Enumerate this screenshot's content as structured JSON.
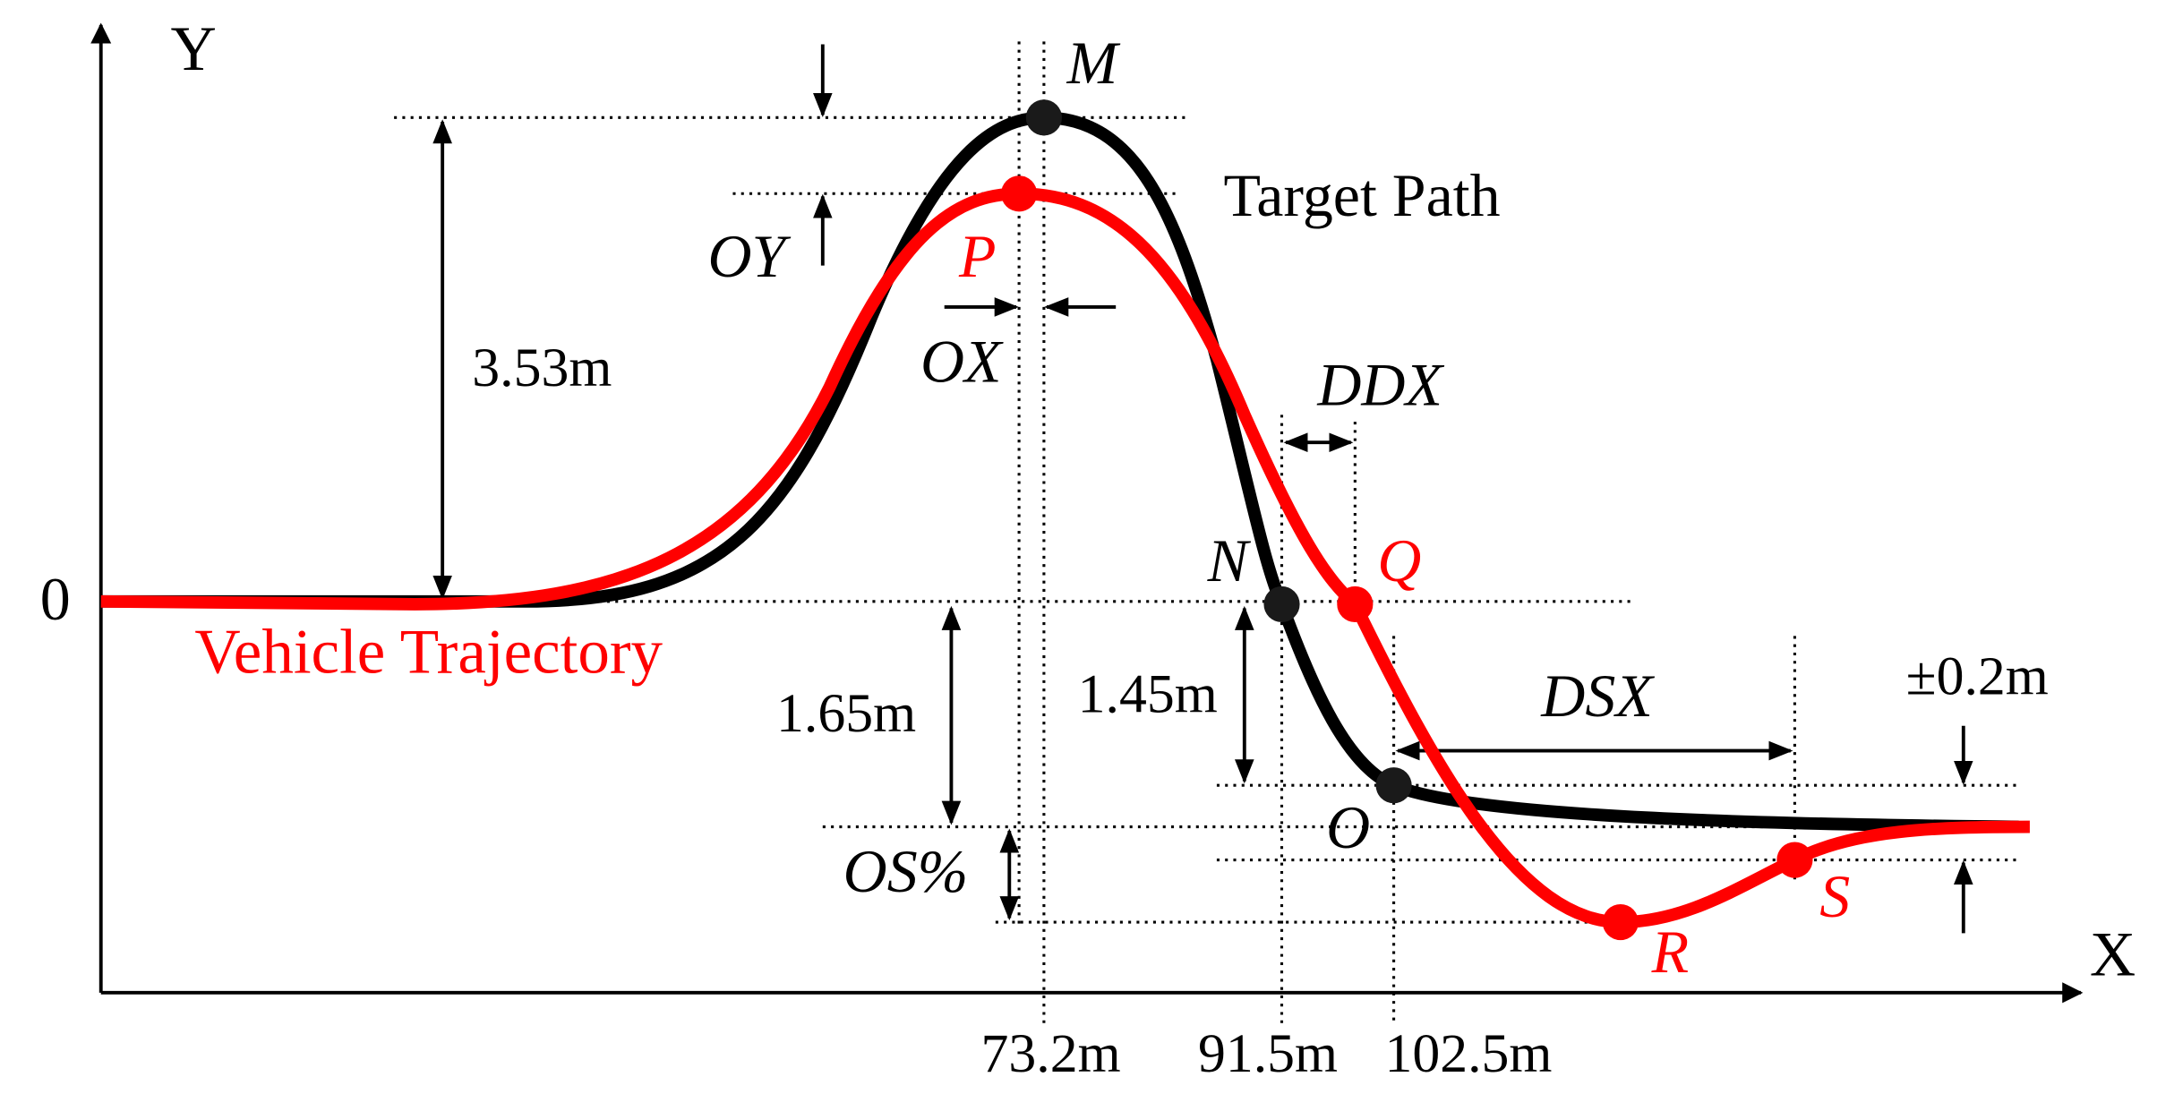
{
  "axes": {
    "y_label": "Y",
    "x_label": "X",
    "origin": "0"
  },
  "labels": {
    "top_peak": "M",
    "target_path": "Target Path",
    "vehicle_peak": "P",
    "overshoot_y": "OY",
    "offset_x": "OX",
    "amplitude": "3.53m",
    "ddx": "DDX",
    "crossing_target": "N",
    "crossing_vehicle": "Q",
    "vehicle_trajectory": "Vehicle Trajectory",
    "lower_offset": "1.65m",
    "target_drop": "1.45m",
    "dsx": "DSX",
    "tolerance": "±0.2m",
    "settle_target": "O",
    "overshoot_percent": "OS%",
    "vehicle_min": "R",
    "vehicle_settle": "S"
  },
  "x_marks": [
    "73.2m",
    "91.5m",
    "102.5m"
  ]
}
